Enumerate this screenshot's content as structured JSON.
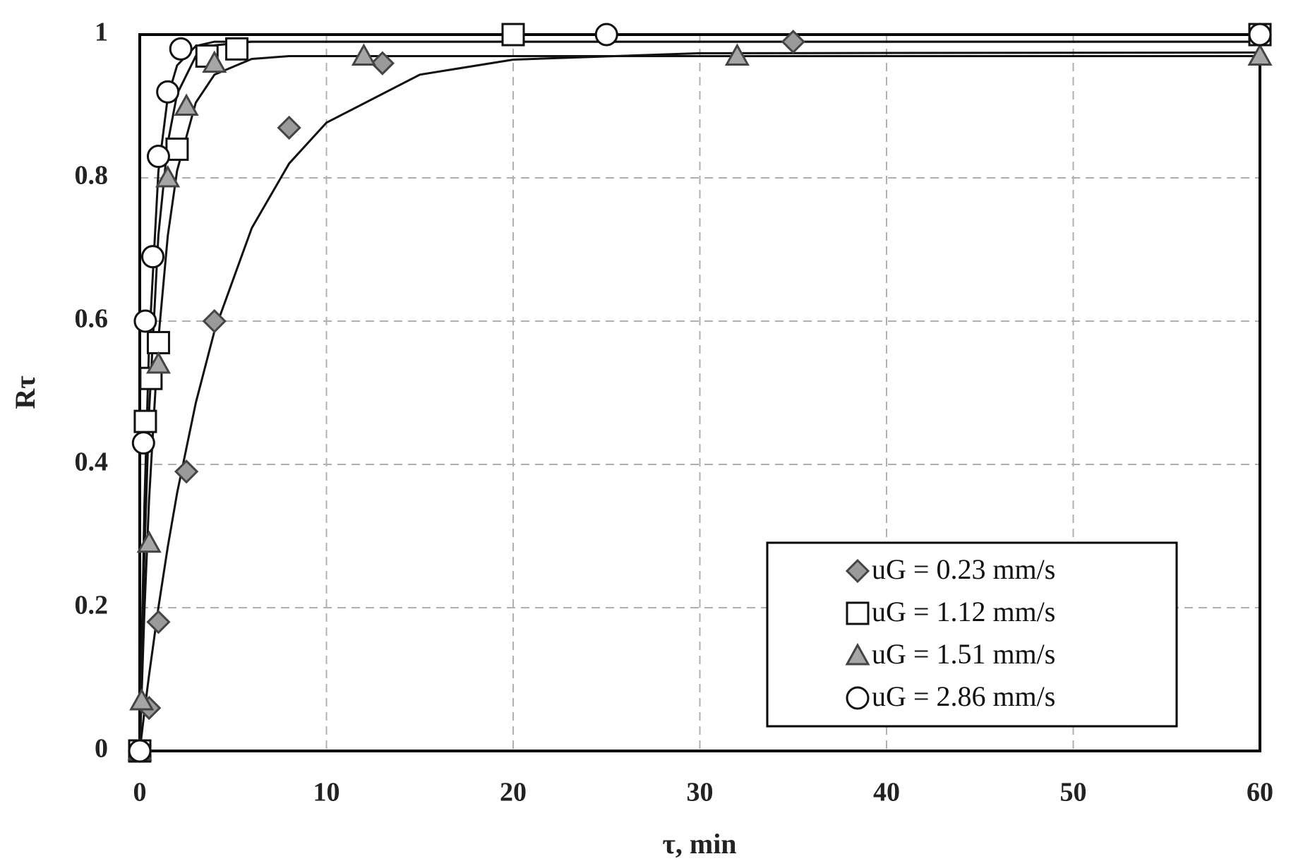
{
  "chart_data": {
    "type": "scatter",
    "x_label": "τ, min",
    "y_label": "Rτ",
    "xlim": [
      0,
      60
    ],
    "xticks": [
      0,
      10,
      20,
      30,
      40,
      50,
      60
    ],
    "ylim": [
      0,
      1
    ],
    "yticks": [
      0,
      0.2,
      0.4,
      0.6,
      0.8,
      1
    ],
    "grid": true,
    "legend": "lower right",
    "series": [
      {
        "name": "uG = 0.23 mm/s",
        "marker": "diamond",
        "color": "#9a9a9a",
        "x": [
          0,
          0.5,
          1,
          2.5,
          4,
          8,
          13,
          35,
          60
        ],
        "values": [
          0,
          0.06,
          0.18,
          0.39,
          0.6,
          0.87,
          0.96,
          0.99,
          1.0
        ],
        "fit": {
          "x": [
            0,
            0.25,
            0.5,
            1,
            1.5,
            2,
            3,
            4,
            6,
            8,
            10,
            15,
            20,
            30,
            60
          ],
          "values": [
            0,
            0.055,
            0.106,
            0.2,
            0.285,
            0.36,
            0.486,
            0.586,
            0.73,
            0.82,
            0.877,
            0.944,
            0.965,
            0.974,
            0.975
          ]
        }
      },
      {
        "name": "uG = 1.12 mm/s",
        "marker": "square",
        "color": "#ffffff",
        "x": [
          0,
          0.3,
          0.6,
          1,
          2,
          3.6,
          5.2,
          20,
          60
        ],
        "values": [
          0,
          0.46,
          0.52,
          0.57,
          0.84,
          0.97,
          0.98,
          1.0,
          1.0
        ],
        "fit": {
          "x": [
            0,
            0.25,
            0.5,
            1,
            1.5,
            2,
            3,
            4,
            6,
            60
          ],
          "values": [
            0,
            0.274,
            0.473,
            0.72,
            0.849,
            0.917,
            0.97,
            0.985,
            0.99,
            0.99
          ]
        }
      },
      {
        "name": "uG = 1.51 mm/s",
        "marker": "triangle",
        "color": "#a6a6a6",
        "x": [
          0,
          0.1,
          0.5,
          1,
          1.5,
          2.5,
          4,
          12,
          32,
          60
        ],
        "values": [
          0,
          0.07,
          0.29,
          0.54,
          0.8,
          0.9,
          0.96,
          0.97,
          0.97,
          0.97
        ],
        "fit": {
          "x": [
            0,
            0.25,
            0.5,
            1,
            1.5,
            2,
            3,
            4,
            6,
            8,
            60
          ],
          "values": [
            0,
            0.195,
            0.351,
            0.575,
            0.719,
            0.81,
            0.905,
            0.944,
            0.966,
            0.97,
            0.97
          ]
        }
      },
      {
        "name": "uG = 2.86 mm/s",
        "marker": "circle",
        "color": "#ffffff",
        "x": [
          0,
          0.2,
          0.3,
          0.7,
          1,
          1.5,
          2.2,
          25,
          60
        ],
        "values": [
          0,
          0.43,
          0.6,
          0.69,
          0.83,
          0.92,
          0.98,
          1.0,
          1.0
        ],
        "fit": {
          "x": [
            0,
            0.25,
            0.5,
            1,
            1.5,
            2,
            3,
            4,
            60
          ],
          "values": [
            0,
            0.343,
            0.567,
            0.809,
            0.913,
            0.957,
            0.984,
            0.99,
            0.99
          ]
        }
      }
    ]
  }
}
